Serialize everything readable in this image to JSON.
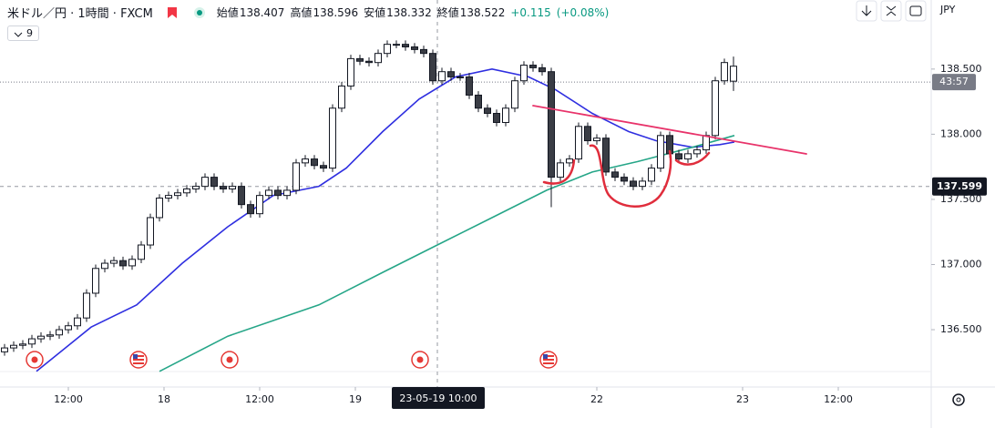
{
  "chart_data": {
    "type": "candlestick",
    "title": "米ドル／円 · 1時間 · FXCM",
    "ohlc": [
      {
        "label": "始値",
        "value": 138.407
      },
      {
        "label": "高値",
        "value": 138.596
      },
      {
        "label": "安値",
        "value": 138.332
      },
      {
        "label": "終値",
        "value": 138.522
      }
    ],
    "change": "+0.115",
    "change_percent": "(+0.08%)",
    "indicator_count": 9,
    "currency": "JPY",
    "open": [
      136.33,
      136.36,
      136.38,
      136.39,
      136.43,
      136.45,
      136.46,
      136.5,
      136.53,
      136.59,
      136.78,
      136.97,
      137.01,
      137.03,
      136.99,
      137.04,
      137.15,
      137.36,
      137.51,
      137.53,
      137.55,
      137.58,
      137.6,
      137.67,
      137.6,
      137.58,
      137.6,
      137.46,
      137.39,
      137.53,
      137.57,
      137.53,
      137.57,
      137.78,
      137.81,
      137.76,
      137.74,
      138.2,
      138.37,
      138.58,
      138.56,
      138.55,
      138.62,
      138.69,
      138.69,
      138.67,
      138.65,
      138.62,
      138.41,
      138.48,
      138.44,
      138.44,
      138.3,
      138.2,
      138.16,
      138.09,
      138.2,
      138.41,
      138.53,
      138.51,
      138.48,
      137.67,
      137.78,
      137.81,
      138.06,
      137.95,
      137.97,
      137.71,
      137.67,
      137.64,
      137.6,
      137.64,
      137.74,
      137.99,
      137.85,
      137.81,
      137.85,
      137.88,
      137.99,
      138.41,
      138.407
    ],
    "high": [
      136.39,
      136.41,
      136.42,
      136.46,
      136.48,
      136.49,
      136.53,
      136.56,
      136.62,
      136.81,
      137.0,
      137.04,
      137.06,
      137.06,
      137.07,
      137.18,
      137.39,
      137.54,
      137.56,
      137.58,
      137.61,
      137.63,
      137.7,
      137.7,
      137.63,
      137.63,
      137.63,
      137.49,
      137.56,
      137.6,
      137.6,
      137.6,
      137.81,
      137.84,
      137.84,
      137.79,
      138.23,
      138.4,
      138.61,
      138.61,
      138.59,
      138.65,
      138.72,
      138.72,
      138.72,
      138.7,
      138.68,
      138.65,
      138.51,
      138.51,
      138.47,
      138.47,
      138.33,
      138.23,
      138.19,
      138.23,
      138.44,
      138.56,
      138.56,
      138.54,
      138.51,
      137.81,
      137.84,
      138.09,
      138.09,
      138.0,
      138.0,
      137.74,
      137.7,
      137.67,
      137.67,
      137.77,
      138.02,
      138.02,
      137.88,
      137.88,
      137.91,
      138.02,
      138.44,
      138.58,
      138.596
    ],
    "low": [
      136.3,
      136.33,
      136.35,
      136.36,
      136.4,
      136.42,
      136.43,
      136.47,
      136.5,
      136.56,
      136.75,
      136.94,
      136.98,
      136.96,
      136.96,
      137.01,
      137.12,
      137.33,
      137.48,
      137.5,
      137.52,
      137.55,
      137.57,
      137.57,
      137.55,
      137.55,
      137.43,
      137.36,
      137.36,
      137.5,
      137.5,
      137.5,
      137.54,
      137.75,
      137.73,
      137.71,
      137.71,
      138.17,
      138.34,
      138.53,
      138.52,
      138.52,
      138.59,
      138.66,
      138.64,
      138.62,
      138.59,
      138.38,
      138.38,
      138.41,
      138.41,
      138.27,
      138.17,
      138.13,
      138.06,
      138.06,
      138.17,
      138.38,
      138.48,
      138.45,
      137.44,
      137.64,
      137.75,
      137.78,
      137.92,
      137.92,
      137.68,
      137.64,
      137.61,
      137.57,
      137.57,
      137.61,
      137.71,
      137.82,
      137.78,
      137.78,
      137.82,
      137.85,
      137.96,
      138.38,
      138.332
    ],
    "close": [
      136.36,
      136.38,
      136.39,
      136.43,
      136.45,
      136.46,
      136.5,
      136.53,
      136.59,
      136.78,
      136.97,
      137.01,
      137.03,
      136.99,
      137.04,
      137.15,
      137.36,
      137.51,
      137.53,
      137.55,
      137.58,
      137.6,
      137.67,
      137.6,
      137.58,
      137.6,
      137.46,
      137.39,
      137.53,
      137.57,
      137.53,
      137.57,
      137.78,
      137.81,
      137.76,
      137.74,
      138.2,
      138.37,
      138.58,
      138.56,
      138.55,
      138.62,
      138.69,
      138.69,
      138.67,
      138.65,
      138.62,
      138.41,
      138.48,
      138.44,
      138.44,
      138.3,
      138.2,
      138.16,
      138.09,
      138.2,
      138.41,
      138.53,
      138.51,
      138.48,
      137.67,
      137.78,
      137.81,
      138.06,
      137.95,
      137.97,
      137.71,
      137.67,
      137.64,
      137.6,
      137.64,
      137.74,
      137.99,
      137.85,
      137.81,
      137.85,
      137.88,
      137.99,
      138.41,
      138.55,
      138.522
    ],
    "overlays": [
      {
        "color": "#2f2fe0",
        "x": [
          3.5,
          9.5,
          14.5,
          19.5,
          24.5,
          29.5,
          34.5,
          37.5,
          41.5,
          45.5,
          49.5,
          53.5,
          57.5,
          60.5,
          64.5,
          68.5,
          71.5,
          75.5,
          78.5,
          80.1
        ],
        "values": [
          136.18,
          136.52,
          136.69,
          137.01,
          137.29,
          137.53,
          137.6,
          137.74,
          138.02,
          138.27,
          138.44,
          138.5,
          138.44,
          138.34,
          138.16,
          138.02,
          137.95,
          137.9,
          137.92,
          137.94
        ]
      },
      {
        "color": "#26a688",
        "x": [
          17,
          24.5,
          34.5,
          41.5,
          47.5,
          53.5,
          59.5,
          64.5,
          69.5,
          75.5,
          80.1
        ],
        "values": [
          136.18,
          136.45,
          136.69,
          136.94,
          137.15,
          137.36,
          137.57,
          137.71,
          137.79,
          137.9,
          137.99
        ]
      }
    ],
    "xlim": [
      -0.5,
      101.7
    ],
    "ylim": [
      136.06,
      139.03
    ],
    "xticks": [
      {
        "value": 7,
        "label": "12:00"
      },
      {
        "value": 17.5,
        "label": "18"
      },
      {
        "value": 28,
        "label": "12:00"
      },
      {
        "value": 38.5,
        "label": "19"
      },
      {
        "value": 65,
        "label": "22"
      },
      {
        "value": 81,
        "label": "23"
      },
      {
        "value": 91.5,
        "label": "12:00"
      }
    ],
    "yticks": [
      {
        "value": 138.5,
        "label": "138.500"
      },
      {
        "value": 138,
        "label": "138.000"
      },
      {
        "value": 137.5,
        "label": "137.500"
      },
      {
        "value": 137,
        "label": "137.000"
      },
      {
        "value": 136.5,
        "label": "136.500"
      }
    ],
    "crosshair": {
      "x": {
        "value": 47.5,
        "label": "23-05-19 10:00"
      },
      "y": 137.599
    },
    "price_line": {
      "value": 138.4,
      "label": "43:57"
    }
  }
}
